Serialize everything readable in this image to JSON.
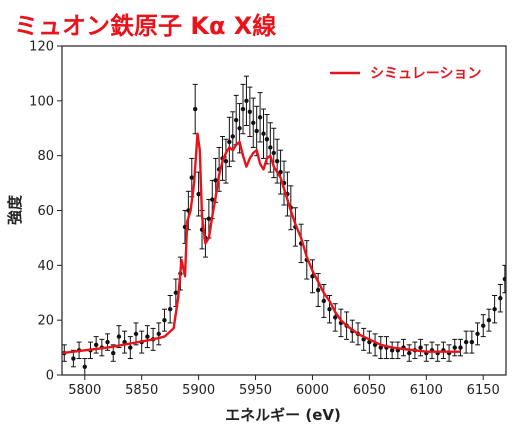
{
  "chart_data": {
    "type": "scatter",
    "title": "ミュオン鉄原子 Kα X線",
    "xlabel": "エネルギー (eV)",
    "ylabel": "強度",
    "xlim": [
      5780,
      6170
    ],
    "ylim": [
      0,
      120
    ],
    "xticks": [
      5800,
      5850,
      5900,
      5950,
      6000,
      6050,
      6100,
      6150
    ],
    "yticks": [
      0,
      20,
      40,
      60,
      80,
      100,
      120
    ],
    "grid": false,
    "legend_position": "top-right",
    "series": [
      {
        "name": "シミュレーション",
        "kind": "line",
        "color": "#e8141b",
        "x": [
          5780,
          5800,
          5820,
          5840,
          5860,
          5870,
          5878,
          5882,
          5885,
          5888,
          5890,
          5893,
          5896,
          5899,
          5901,
          5903,
          5906,
          5909,
          5912,
          5915,
          5918,
          5921,
          5924,
          5927,
          5930,
          5933,
          5936,
          5939,
          5942,
          5945,
          5948,
          5951,
          5954,
          5957,
          5960,
          5963,
          5966,
          5969,
          5972,
          5975,
          5978,
          5981,
          5985,
          5990,
          5995,
          6000,
          6005,
          6010,
          6015,
          6020,
          6025,
          6030,
          6040,
          6050,
          6060,
          6070,
          6080,
          6090,
          6100,
          6110,
          6120,
          6130
        ],
        "y": [
          8,
          9,
          10,
          11.5,
          13,
          14,
          17,
          28,
          42,
          36,
          56,
          60,
          70,
          88,
          82,
          58,
          48,
          50,
          58,
          65,
          73,
          78,
          81,
          83,
          82,
          84,
          85,
          80,
          76,
          79,
          81,
          82,
          77,
          75,
          79,
          80,
          76,
          74,
          72,
          68,
          64,
          60,
          55,
          50,
          43,
          38,
          34,
          30,
          27,
          23,
          20,
          18,
          15,
          13,
          11,
          10,
          9.5,
          9,
          8.5,
          8.5,
          8.5,
          8.5
        ]
      },
      {
        "name": "",
        "kind": "scatter-errorbars",
        "color": "#111111",
        "points": [
          {
            "x": 5782,
            "y": 8,
            "e": 3
          },
          {
            "x": 5790,
            "y": 6,
            "e": 3
          },
          {
            "x": 5795,
            "y": 9,
            "e": 3
          },
          {
            "x": 5800,
            "y": 3,
            "e": 3
          },
          {
            "x": 5805,
            "y": 9,
            "e": 3
          },
          {
            "x": 5810,
            "y": 11,
            "e": 3
          },
          {
            "x": 5815,
            "y": 10,
            "e": 3
          },
          {
            "x": 5820,
            "y": 12,
            "e": 3
          },
          {
            "x": 5825,
            "y": 8,
            "e": 3
          },
          {
            "x": 5830,
            "y": 14,
            "e": 4
          },
          {
            "x": 5835,
            "y": 12,
            "e": 4
          },
          {
            "x": 5840,
            "y": 10,
            "e": 4
          },
          {
            "x": 5845,
            "y": 15,
            "e": 4
          },
          {
            "x": 5850,
            "y": 12,
            "e": 4
          },
          {
            "x": 5855,
            "y": 14,
            "e": 4
          },
          {
            "x": 5860,
            "y": 13,
            "e": 4
          },
          {
            "x": 5865,
            "y": 15,
            "e": 4
          },
          {
            "x": 5870,
            "y": 20,
            "e": 4
          },
          {
            "x": 5875,
            "y": 24,
            "e": 5
          },
          {
            "x": 5880,
            "y": 30,
            "e": 5
          },
          {
            "x": 5884,
            "y": 37,
            "e": 6
          },
          {
            "x": 5888,
            "y": 54,
            "e": 6
          },
          {
            "x": 5891,
            "y": 60,
            "e": 7
          },
          {
            "x": 5894,
            "y": 72,
            "e": 7
          },
          {
            "x": 5897,
            "y": 97,
            "e": 9
          },
          {
            "x": 5900,
            "y": 66,
            "e": 8
          },
          {
            "x": 5903,
            "y": 53,
            "e": 7
          },
          {
            "x": 5906,
            "y": 50,
            "e": 7
          },
          {
            "x": 5909,
            "y": 57,
            "e": 7
          },
          {
            "x": 5912,
            "y": 64,
            "e": 7
          },
          {
            "x": 5915,
            "y": 71,
            "e": 8
          },
          {
            "x": 5918,
            "y": 75,
            "e": 8
          },
          {
            "x": 5921,
            "y": 79,
            "e": 8
          },
          {
            "x": 5924,
            "y": 78,
            "e": 8
          },
          {
            "x": 5927,
            "y": 85,
            "e": 9
          },
          {
            "x": 5930,
            "y": 87,
            "e": 9
          },
          {
            "x": 5933,
            "y": 93,
            "e": 9
          },
          {
            "x": 5936,
            "y": 90,
            "e": 9
          },
          {
            "x": 5939,
            "y": 97,
            "e": 9
          },
          {
            "x": 5942,
            "y": 100,
            "e": 9
          },
          {
            "x": 5945,
            "y": 96,
            "e": 9
          },
          {
            "x": 5948,
            "y": 92,
            "e": 9
          },
          {
            "x": 5951,
            "y": 89,
            "e": 9
          },
          {
            "x": 5954,
            "y": 94,
            "e": 9
          },
          {
            "x": 5957,
            "y": 88,
            "e": 9
          },
          {
            "x": 5960,
            "y": 86,
            "e": 9
          },
          {
            "x": 5963,
            "y": 83,
            "e": 9
          },
          {
            "x": 5966,
            "y": 81,
            "e": 9
          },
          {
            "x": 5969,
            "y": 78,
            "e": 8
          },
          {
            "x": 5972,
            "y": 74,
            "e": 8
          },
          {
            "x": 5975,
            "y": 70,
            "e": 8
          },
          {
            "x": 5978,
            "y": 66,
            "e": 8
          },
          {
            "x": 5981,
            "y": 61,
            "e": 8
          },
          {
            "x": 5985,
            "y": 54,
            "e": 7
          },
          {
            "x": 5990,
            "y": 48,
            "e": 7
          },
          {
            "x": 5995,
            "y": 42,
            "e": 7
          },
          {
            "x": 6000,
            "y": 36,
            "e": 6
          },
          {
            "x": 6005,
            "y": 31,
            "e": 6
          },
          {
            "x": 6010,
            "y": 27,
            "e": 6
          },
          {
            "x": 6015,
            "y": 24,
            "e": 5
          },
          {
            "x": 6020,
            "y": 21,
            "e": 5
          },
          {
            "x": 6025,
            "y": 19,
            "e": 5
          },
          {
            "x": 6030,
            "y": 18,
            "e": 5
          },
          {
            "x": 6035,
            "y": 16,
            "e": 4
          },
          {
            "x": 6040,
            "y": 15,
            "e": 4
          },
          {
            "x": 6045,
            "y": 13,
            "e": 4
          },
          {
            "x": 6050,
            "y": 12,
            "e": 4
          },
          {
            "x": 6055,
            "y": 11,
            "e": 4
          },
          {
            "x": 6060,
            "y": 10,
            "e": 4
          },
          {
            "x": 6065,
            "y": 10,
            "e": 4
          },
          {
            "x": 6070,
            "y": 9,
            "e": 3
          },
          {
            "x": 6075,
            "y": 9,
            "e": 3
          },
          {
            "x": 6080,
            "y": 10,
            "e": 3
          },
          {
            "x": 6085,
            "y": 8,
            "e": 3
          },
          {
            "x": 6090,
            "y": 9,
            "e": 3
          },
          {
            "x": 6095,
            "y": 10,
            "e": 3
          },
          {
            "x": 6100,
            "y": 8,
            "e": 3
          },
          {
            "x": 6105,
            "y": 9,
            "e": 3
          },
          {
            "x": 6110,
            "y": 8,
            "e": 3
          },
          {
            "x": 6115,
            "y": 9,
            "e": 3
          },
          {
            "x": 6120,
            "y": 8,
            "e": 3
          },
          {
            "x": 6125,
            "y": 10,
            "e": 3
          },
          {
            "x": 6130,
            "y": 10,
            "e": 3
          },
          {
            "x": 6135,
            "y": 12,
            "e": 4
          },
          {
            "x": 6140,
            "y": 12,
            "e": 4
          },
          {
            "x": 6145,
            "y": 15,
            "e": 4
          },
          {
            "x": 6150,
            "y": 18,
            "e": 4
          },
          {
            "x": 6155,
            "y": 20,
            "e": 4
          },
          {
            "x": 6160,
            "y": 24,
            "e": 5
          },
          {
            "x": 6165,
            "y": 28,
            "e": 5
          },
          {
            "x": 6169,
            "y": 35,
            "e": 5
          }
        ]
      }
    ]
  }
}
